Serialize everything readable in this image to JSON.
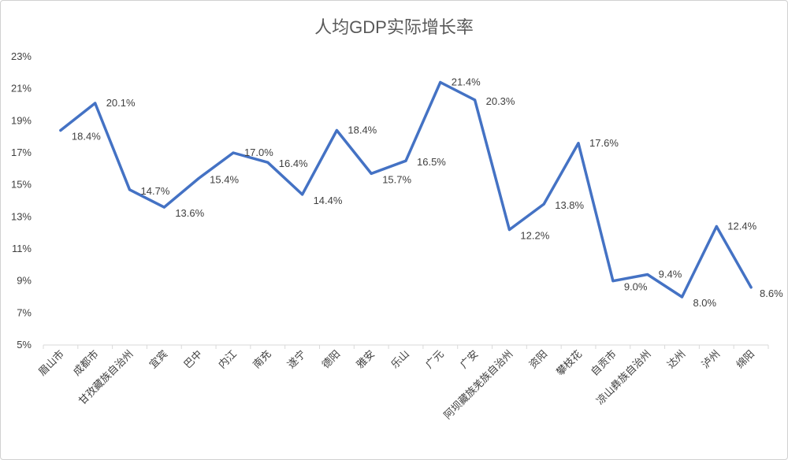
{
  "chart_data": {
    "type": "line",
    "title": "人均GDP实际增长率",
    "xlabel": "",
    "ylabel": "",
    "ylim": [
      5,
      23
    ],
    "yticks": [
      "5%",
      "7%",
      "9%",
      "11%",
      "13%",
      "15%",
      "17%",
      "19%",
      "21%",
      "23%"
    ],
    "grid": false,
    "legend": "none",
    "line_color": "#4472C4",
    "categories": [
      "眉山市",
      "成都市",
      "甘孜藏族自治州",
      "宜宾",
      "巴中",
      "内江",
      "南充",
      "遂宁",
      "德阳",
      "雅安",
      "乐山",
      "广元",
      "广安",
      "阿坝藏族羌族自治州",
      "资阳",
      "攀枝花",
      "自贡市",
      "凉山彝族自治州",
      "达州",
      "泸州",
      "绵阳"
    ],
    "series": [
      {
        "values": [
          18.4,
          20.1,
          14.7,
          13.6,
          15.4,
          17.0,
          16.4,
          14.4,
          18.4,
          15.7,
          16.5,
          21.4,
          20.3,
          12.2,
          13.8,
          17.6,
          9.0,
          9.4,
          8.0,
          12.4,
          8.6
        ],
        "labels": [
          "18.4%",
          "20.1%",
          "14.7%",
          "13.6%",
          "15.4%",
          "17.0%",
          "16.4%",
          "14.4%",
          "18.4%",
          "15.7%",
          "16.5%",
          "21.4%",
          "20.3%",
          "12.2%",
          "13.8%",
          "17.6%",
          "9.0%",
          "9.4%",
          "8.0%",
          "12.4%",
          "8.6%"
        ]
      }
    ]
  }
}
